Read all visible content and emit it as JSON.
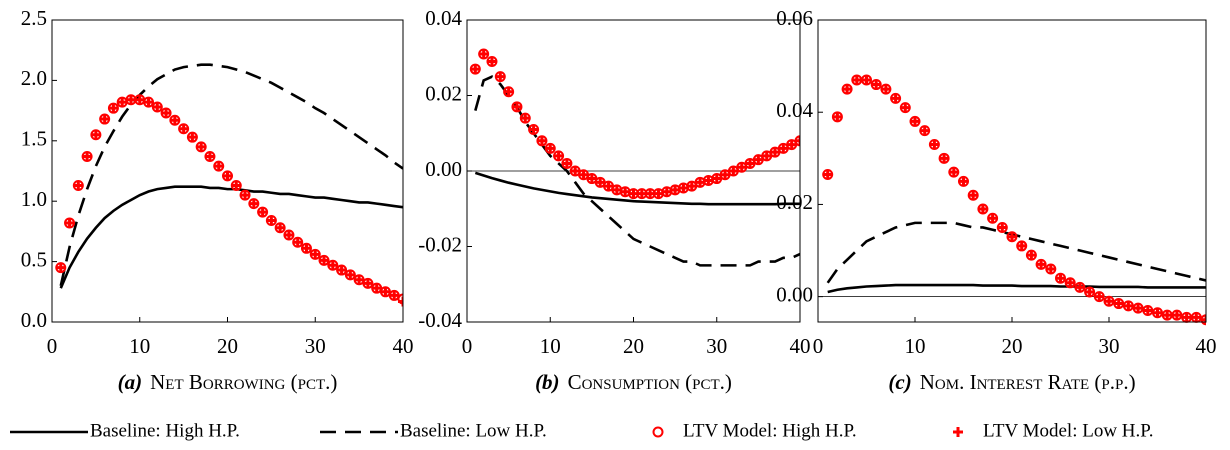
{
  "chart_data": [
    {
      "type": "line",
      "label": "(a)",
      "title": "Net Borrowing (pct.)",
      "x": [
        1,
        2,
        3,
        4,
        5,
        6,
        7,
        8,
        9,
        10,
        11,
        12,
        13,
        14,
        15,
        16,
        17,
        18,
        19,
        20,
        21,
        22,
        23,
        24,
        25,
        26,
        27,
        28,
        29,
        30,
        31,
        32,
        33,
        34,
        35,
        36,
        37,
        38,
        39,
        40
      ],
      "xlim": [
        0,
        40
      ],
      "xticks": [
        0,
        10,
        20,
        30,
        40
      ],
      "ylim": [
        0,
        2.5
      ],
      "yticks": [
        {
          "value": 0,
          "label": "0.0"
        },
        0.5,
        {
          "value": 1,
          "label": "1.0"
        },
        1.5,
        {
          "value": 2,
          "label": "2.0"
        },
        2.5
      ],
      "zero_line": false,
      "series": [
        {
          "name": "Baseline: High H.P.",
          "color": "#000000",
          "style": "solid",
          "values": [
            0.28,
            0.45,
            0.58,
            0.69,
            0.78,
            0.86,
            0.92,
            0.97,
            1.01,
            1.05,
            1.08,
            1.1,
            1.11,
            1.12,
            1.12,
            1.12,
            1.12,
            1.11,
            1.11,
            1.1,
            1.1,
            1.09,
            1.08,
            1.08,
            1.07,
            1.06,
            1.06,
            1.05,
            1.04,
            1.03,
            1.03,
            1.02,
            1.01,
            1.0,
            0.99,
            0.99,
            0.98,
            0.97,
            0.96,
            0.95
          ]
        },
        {
          "name": "Baseline: Low H.P.",
          "color": "#000000",
          "style": "dashed",
          "values": [
            0.3,
            0.62,
            0.88,
            1.1,
            1.29,
            1.45,
            1.58,
            1.7,
            1.8,
            1.88,
            1.95,
            2.01,
            2.05,
            2.09,
            2.11,
            2.12,
            2.13,
            2.13,
            2.12,
            2.11,
            2.09,
            2.07,
            2.04,
            2.01,
            1.98,
            1.94,
            1.9,
            1.86,
            1.82,
            1.77,
            1.73,
            1.68,
            1.63,
            1.58,
            1.53,
            1.48,
            1.43,
            1.38,
            1.32,
            1.27
          ]
        },
        {
          "name": "LTV Model: High H.P.",
          "color": "#ff0000",
          "style": "circle",
          "values": [
            0.45,
            0.82,
            1.13,
            1.37,
            1.55,
            1.68,
            1.77,
            1.82,
            1.84,
            1.84,
            1.82,
            1.78,
            1.73,
            1.67,
            1.6,
            1.53,
            1.45,
            1.37,
            1.29,
            1.21,
            1.13,
            1.05,
            0.98,
            0.91,
            0.84,
            0.78,
            0.72,
            0.66,
            0.61,
            0.56,
            0.51,
            0.47,
            0.43,
            0.39,
            0.35,
            0.32,
            0.28,
            0.25,
            0.22,
            0.19
          ]
        },
        {
          "name": "LTV Model: Low H.P.",
          "color": "#ff0000",
          "style": "plus",
          "values": [
            0.45,
            0.82,
            1.13,
            1.37,
            1.55,
            1.68,
            1.77,
            1.82,
            1.84,
            1.84,
            1.82,
            1.78,
            1.73,
            1.67,
            1.6,
            1.53,
            1.45,
            1.37,
            1.29,
            1.21,
            1.13,
            1.05,
            0.98,
            0.91,
            0.84,
            0.78,
            0.72,
            0.66,
            0.61,
            0.56,
            0.51,
            0.47,
            0.43,
            0.39,
            0.35,
            0.32,
            0.28,
            0.25,
            0.22,
            0.17
          ]
        }
      ]
    },
    {
      "type": "line",
      "label": "(b)",
      "title": "Consumption (pct.)",
      "x": [
        1,
        2,
        3,
        4,
        5,
        6,
        7,
        8,
        9,
        10,
        11,
        12,
        13,
        14,
        15,
        16,
        17,
        18,
        19,
        20,
        21,
        22,
        23,
        24,
        25,
        26,
        27,
        28,
        29,
        30,
        31,
        32,
        33,
        34,
        35,
        36,
        37,
        38,
        39,
        40
      ],
      "xlim": [
        0,
        40
      ],
      "xticks": [
        0,
        10,
        20,
        30,
        40
      ],
      "ylim": [
        -0.04,
        0.04
      ],
      "yticks": [
        -0.04,
        -0.02,
        {
          "value": 0,
          "label": "0.00"
        },
        0.02,
        0.04
      ],
      "zero_line": true,
      "series": [
        {
          "color": "#000000",
          "style": "solid",
          "values": [
            -0.0005,
            -0.0012,
            -0.0019,
            -0.0025,
            -0.0031,
            -0.0036,
            -0.0041,
            -0.0046,
            -0.005,
            -0.0054,
            -0.0058,
            -0.0061,
            -0.0064,
            -0.0067,
            -0.007,
            -0.0072,
            -0.0074,
            -0.0076,
            -0.0078,
            -0.008,
            -0.0081,
            -0.0082,
            -0.0083,
            -0.0084,
            -0.0085,
            -0.0086,
            -0.0087,
            -0.0087,
            -0.0088,
            -0.0088,
            -0.0088,
            -0.0088,
            -0.0088,
            -0.0088,
            -0.0088,
            -0.0088,
            -0.0088,
            -0.0087,
            -0.0087,
            -0.0087
          ]
        },
        {
          "color": "#000000",
          "style": "dashed",
          "values": [
            0.016,
            0.024,
            0.025,
            0.023,
            0.02,
            0.017,
            0.013,
            0.01,
            0.007,
            0.004,
            0.002,
            0,
            -0.003,
            -0.006,
            -0.008,
            -0.01,
            -0.012,
            -0.014,
            -0.016,
            -0.018,
            -0.019,
            -0.02,
            -0.021,
            -0.022,
            -0.023,
            -0.024,
            -0.024,
            -0.025,
            -0.025,
            -0.025,
            -0.025,
            -0.025,
            -0.025,
            -0.025,
            -0.024,
            -0.024,
            -0.024,
            -0.023,
            -0.023,
            -0.022
          ]
        },
        {
          "color": "#ff0000",
          "style": "circle",
          "values": [
            0.027,
            0.031,
            0.029,
            0.025,
            0.021,
            0.017,
            0.014,
            0.011,
            0.008,
            0.006,
            0.004,
            0.002,
            0,
            -0.001,
            -0.002,
            -0.003,
            -0.004,
            -0.005,
            -0.0055,
            -0.006,
            -0.006,
            -0.006,
            -0.006,
            -0.0055,
            -0.005,
            -0.0045,
            -0.004,
            -0.003,
            -0.0025,
            -0.002,
            -0.001,
            0,
            0.001,
            0.002,
            0.003,
            0.004,
            0.005,
            0.006,
            0.007,
            0.008
          ]
        },
        {
          "color": "#ff0000",
          "style": "plus",
          "values": [
            0.027,
            0.031,
            0.029,
            0.025,
            0.021,
            0.017,
            0.014,
            0.011,
            0.008,
            0.006,
            0.004,
            0.002,
            0,
            -0.001,
            -0.002,
            -0.003,
            -0.004,
            -0.005,
            -0.0055,
            -0.006,
            -0.006,
            -0.006,
            -0.006,
            -0.0055,
            -0.005,
            -0.0045,
            -0.004,
            -0.003,
            -0.0025,
            -0.002,
            -0.001,
            0,
            0.001,
            0.002,
            0.003,
            0.004,
            0.005,
            0.006,
            0.007,
            0.008
          ]
        }
      ]
    },
    {
      "type": "line",
      "label": "(c)",
      "title": "Nom. Interest Rate (p.p.)",
      "x": [
        1,
        2,
        3,
        4,
        5,
        6,
        7,
        8,
        9,
        10,
        11,
        12,
        13,
        14,
        15,
        16,
        17,
        18,
        19,
        20,
        21,
        22,
        23,
        24,
        25,
        26,
        27,
        28,
        29,
        30,
        31,
        32,
        33,
        34,
        35,
        36,
        37,
        38,
        39,
        40
      ],
      "xlim": [
        0,
        40
      ],
      "xticks": [
        0,
        10,
        20,
        30,
        40
      ],
      "ylim": [
        -0.0055,
        0.06
      ],
      "yticks": [
        {
          "value": 0,
          "label": "0.00"
        },
        0.02,
        0.04,
        0.06
      ],
      "zero_line": true,
      "series": [
        {
          "color": "#000000",
          "style": "solid",
          "values": [
            0.001,
            0.0015,
            0.0018,
            0.002,
            0.0022,
            0.0023,
            0.0024,
            0.0025,
            0.0025,
            0.0025,
            0.0025,
            0.0025,
            0.0025,
            0.0025,
            0.0025,
            0.0025,
            0.0024,
            0.0024,
            0.0024,
            0.0024,
            0.0023,
            0.0023,
            0.0023,
            0.0023,
            0.0022,
            0.0022,
            0.0022,
            0.0022,
            0.0021,
            0.0021,
            0.0021,
            0.0021,
            0.0021,
            0.002,
            0.002,
            0.002,
            0.002,
            0.002,
            0.002,
            0.002
          ]
        },
        {
          "color": "#000000",
          "style": "dashed",
          "values": [
            0.003,
            0.006,
            0.008,
            0.01,
            0.012,
            0.013,
            0.014,
            0.015,
            0.0155,
            0.016,
            0.016,
            0.016,
            0.016,
            0.016,
            0.0155,
            0.015,
            0.015,
            0.0145,
            0.014,
            0.0135,
            0.013,
            0.0125,
            0.012,
            0.0115,
            0.011,
            0.0105,
            0.01,
            0.0095,
            0.009,
            0.0085,
            0.008,
            0.0075,
            0.007,
            0.0065,
            0.006,
            0.0055,
            0.005,
            0.0045,
            0.004,
            0.0035
          ]
        },
        {
          "color": "#ff0000",
          "style": "circle",
          "values": [
            0.0265,
            0.039,
            0.045,
            0.047,
            0.047,
            0.046,
            0.045,
            0.043,
            0.041,
            0.038,
            0.036,
            0.033,
            0.03,
            0.027,
            0.025,
            0.022,
            0.019,
            0.017,
            0.015,
            0.013,
            0.011,
            0.009,
            0.007,
            0.006,
            0.004,
            0.003,
            0.002,
            0.001,
            0,
            -0.001,
            -0.0015,
            -0.002,
            -0.0025,
            -0.003,
            -0.0035,
            -0.004,
            -0.004,
            -0.0045,
            -0.0045,
            -0.005
          ]
        },
        {
          "color": "#ff0000",
          "style": "plus",
          "values": [
            0.0265,
            0.039,
            0.045,
            0.047,
            0.047,
            0.046,
            0.045,
            0.043,
            0.041,
            0.038,
            0.036,
            0.033,
            0.03,
            0.027,
            0.025,
            0.022,
            0.019,
            0.017,
            0.015,
            0.013,
            0.011,
            0.009,
            0.007,
            0.006,
            0.004,
            0.003,
            0.002,
            0.001,
            0,
            -0.001,
            -0.0015,
            -0.002,
            -0.0025,
            -0.003,
            -0.0035,
            -0.004,
            -0.004,
            -0.0045,
            -0.0045,
            -0.005
          ]
        }
      ]
    }
  ]
}
